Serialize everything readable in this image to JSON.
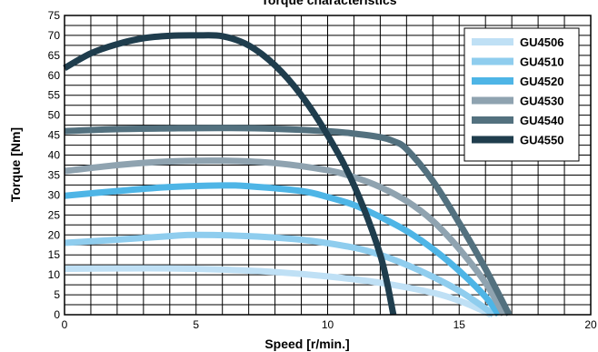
{
  "chart_data": {
    "type": "line",
    "title": "Torque characteristics",
    "xlabel": "Speed [r/min.]",
    "ylabel": "Torque [Nm]",
    "xlim": [
      0,
      20
    ],
    "ylim": [
      0,
      75
    ],
    "x_ticks": [
      "0",
      "5",
      "10",
      "15",
      "20"
    ],
    "y_ticks": [
      "0",
      "5",
      "10",
      "15",
      "20",
      "25",
      "30",
      "35",
      "40",
      "45",
      "50",
      "55",
      "60",
      "65",
      "70",
      "75"
    ],
    "grid": true,
    "legend_position": "top-right",
    "series": [
      {
        "name": "GU4506",
        "color": "#bfe0f5",
        "x": [
          0,
          2,
          4,
          6,
          8,
          10,
          12,
          14,
          15,
          15.8,
          16.2
        ],
        "y": [
          11.5,
          11.6,
          11.6,
          11.3,
          10.7,
          9.6,
          8.0,
          5.5,
          3.5,
          1.3,
          0
        ]
      },
      {
        "name": "GU4510",
        "color": "#8fcdee",
        "x": [
          0,
          2,
          4,
          5,
          7,
          9,
          11,
          12,
          13,
          14,
          15,
          15.8,
          16.3
        ],
        "y": [
          18,
          18.8,
          19.7,
          20,
          19.7,
          18.8,
          16.8,
          15.0,
          12.5,
          9.5,
          6.0,
          2.5,
          0
        ]
      },
      {
        "name": "GU4520",
        "color": "#4eb5e6",
        "x": [
          0,
          2,
          4,
          6,
          7,
          9,
          10,
          11,
          12,
          13,
          14,
          15,
          16,
          16.5
        ],
        "y": [
          29.8,
          31,
          32,
          32.4,
          32.2,
          31,
          29.5,
          27.5,
          24.5,
          21.0,
          16.5,
          11.0,
          4.5,
          0
        ]
      },
      {
        "name": "GU4530",
        "color": "#8fa3b0",
        "x": [
          0,
          2,
          4,
          6,
          8,
          10,
          11,
          12,
          13,
          14,
          15,
          16,
          16.7
        ],
        "y": [
          36,
          37.5,
          38.4,
          38.6,
          38.0,
          36.2,
          34.5,
          32.0,
          28.5,
          23.5,
          16.5,
          8.0,
          0
        ]
      },
      {
        "name": "GU4540",
        "color": "#53717f",
        "x": [
          0,
          2,
          4,
          6,
          8,
          10,
          11,
          12,
          12.5,
          13,
          14,
          15,
          16,
          16.9
        ],
        "y": [
          46,
          46.5,
          46.7,
          46.8,
          46.6,
          46.0,
          45.4,
          44.5,
          43.5,
          41.5,
          33.5,
          23.0,
          11.5,
          0
        ]
      },
      {
        "name": "GU4550",
        "color": "#1f3d4d",
        "x": [
          0,
          1,
          2,
          3,
          4,
          5,
          6,
          7,
          8,
          9,
          10,
          11,
          12,
          12.5
        ],
        "y": [
          61.8,
          65.5,
          67.8,
          69.3,
          69.9,
          70.0,
          69.8,
          67.5,
          62.5,
          55.0,
          45.0,
          32.5,
          15.0,
          0
        ]
      }
    ]
  }
}
